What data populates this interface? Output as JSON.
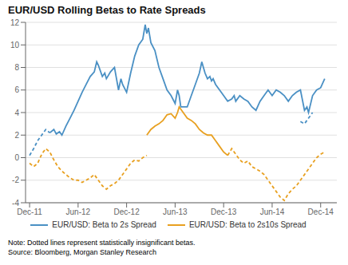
{
  "chart_data": {
    "type": "line",
    "title": "EUR/USD Rolling Betas to Rate Spreads",
    "annotations": [
      "Note: Dotted lines represent statistically insignificant betas.",
      "Source: Bloomberg, Morgan Stanley Research"
    ],
    "xlim": [
      -0.5,
      38
    ],
    "xticks": [
      {
        "value": 0,
        "label": "Dec-11"
      },
      {
        "value": 6,
        "label": "Jun-12"
      },
      {
        "value": 12,
        "label": "Dec-12"
      },
      {
        "value": 18,
        "label": "Jun-13"
      },
      {
        "value": 24,
        "label": "Dec-13"
      },
      {
        "value": 30,
        "label": "Jun-14"
      },
      {
        "value": 36,
        "label": "Dec-14"
      }
    ],
    "ylim": [
      -4,
      12
    ],
    "yticks": [
      -4,
      -2,
      0,
      2,
      4,
      6,
      8,
      10,
      12
    ],
    "grid": true,
    "legend": "bottom",
    "series": [
      {
        "name": "EUR/USD: Beta to 2s Spread",
        "color": "#4a90c4",
        "line_style": "solid",
        "x": [
          2.5,
          3.0,
          3.3,
          3.7,
          4.0,
          4.5,
          5.0,
          5.5,
          6.0,
          6.5,
          7.0,
          7.5,
          8.0,
          8.3,
          8.5,
          9.0,
          9.3,
          9.5,
          10.0,
          10.5,
          11.0,
          11.3,
          11.5,
          12.0,
          12.5,
          13.0,
          13.5,
          14.0,
          14.3,
          14.5,
          14.7,
          15.0,
          15.5,
          16.0,
          16.5,
          17.0,
          17.5,
          18.0,
          18.3,
          18.5,
          18.7,
          19.0,
          19.5,
          20.0,
          20.5,
          21.0,
          21.3,
          21.5,
          21.7,
          22.0,
          22.3,
          22.5,
          22.7,
          23.0,
          23.5,
          24.0,
          24.5,
          25.0,
          25.3,
          25.5,
          26.0,
          26.5,
          27.0,
          27.5,
          28.0,
          28.5,
          29.0,
          29.5,
          30.0,
          30.5,
          31.0,
          31.5,
          32.0,
          32.5,
          33.0,
          33.5,
          34.0,
          34.3,
          34.5,
          35.0,
          35.5,
          36.0,
          36.5
        ],
        "values": [
          2.2,
          2.5,
          2.1,
          2.3,
          2.0,
          2.8,
          3.5,
          4.2,
          5.0,
          5.8,
          6.5,
          7.2,
          7.6,
          8.5,
          8.2,
          7.2,
          7.5,
          7.0,
          7.6,
          8.0,
          6.0,
          7.0,
          6.5,
          5.8,
          7.5,
          9.0,
          10.0,
          10.5,
          11.8,
          11.0,
          11.5,
          10.2,
          9.5,
          8.0,
          7.0,
          6.0,
          5.5,
          4.8,
          6.0,
          5.5,
          4.5,
          4.5,
          4.5,
          5.5,
          6.5,
          7.5,
          8.5,
          8.0,
          7.5,
          7.0,
          7.2,
          6.8,
          7.0,
          6.5,
          6.0,
          5.5,
          5.0,
          5.2,
          5.5,
          5.0,
          5.5,
          5.2,
          5.0,
          4.5,
          4.2,
          5.0,
          5.5,
          6.0,
          5.5,
          6.0,
          5.8,
          5.5,
          5.0,
          5.5,
          5.8,
          6.0,
          4.2,
          4.5,
          4.0,
          5.5,
          6.0,
          6.2,
          7.0
        ]
      },
      {
        "name": "EUR/USD: Beta to 2s Spread",
        "color": "#4a90c4",
        "line_style": "dashed",
        "x": [
          0.0,
          0.5,
          1.0,
          1.5,
          2.0,
          2.5
        ],
        "values": [
          0.2,
          0.8,
          1.5,
          2.0,
          2.5,
          2.2
        ]
      },
      {
        "name": "EUR/USD: Beta to 2s Spread",
        "color": "#4a90c4",
        "line_style": "dashed",
        "x": [
          33.5,
          34.0,
          34.3,
          34.5,
          35.0
        ],
        "values": [
          3.2,
          3.0,
          3.3,
          3.5,
          4.0
        ]
      },
      {
        "name": "EUR/USD: Beta to 2s10s Spread",
        "color": "#e8a020",
        "line_style": "solid",
        "x": [
          14.5,
          15.0,
          15.5,
          16.0,
          16.5,
          17.0,
          17.5,
          18.0,
          18.3,
          18.5,
          18.7,
          19.0,
          19.5,
          20.0,
          20.5,
          21.0,
          21.5,
          22.0,
          22.5,
          23.0,
          23.5,
          24.0,
          24.5
        ],
        "values": [
          2.0,
          2.5,
          2.8,
          3.0,
          3.3,
          3.8,
          3.9,
          3.5,
          4.0,
          4.5,
          4.3,
          4.0,
          3.5,
          3.3,
          3.0,
          2.5,
          2.2,
          2.0,
          2.0,
          1.5,
          1.0,
          0.5,
          0.2
        ]
      },
      {
        "name": "EUR/USD: Beta to 2s10s Spread",
        "color": "#e8a020",
        "line_style": "dashed",
        "x": [
          0.0,
          0.5,
          1.0,
          1.5,
          2.0,
          2.5,
          3.0,
          3.5,
          4.0,
          4.5,
          5.0,
          5.5,
          6.0,
          6.5,
          7.0,
          7.5,
          8.0,
          8.5,
          9.0,
          9.5,
          10.0,
          10.5,
          11.0,
          11.5,
          12.0,
          12.5,
          13.0,
          13.5,
          14.0,
          14.5
        ],
        "values": [
          -0.5,
          -0.8,
          -0.5,
          0.3,
          0.8,
          0.5,
          -0.2,
          -0.8,
          -1.2,
          -1.5,
          -1.8,
          -2.0,
          -2.0,
          -2.2,
          -2.0,
          -1.8,
          -1.5,
          -2.0,
          -2.5,
          -2.8,
          -2.5,
          -2.3,
          -2.0,
          -1.5,
          -1.0,
          -0.5,
          -0.2,
          -0.3,
          0.0,
          0.2
        ]
      },
      {
        "name": "EUR/USD: Beta to 2s10s Spread",
        "color": "#e8a020",
        "line_style": "dashed",
        "x": [
          24.5,
          25.0,
          25.5,
          26.0,
          26.5,
          27.0,
          27.5,
          28.0,
          28.5,
          29.0,
          29.5,
          30.0,
          30.5,
          31.0,
          31.5,
          32.0,
          32.5,
          33.0,
          33.5,
          34.0,
          34.5,
          35.0,
          35.5,
          36.0,
          36.5
        ],
        "values": [
          0.2,
          0.8,
          0.3,
          -0.2,
          -0.5,
          -0.3,
          -0.8,
          -1.0,
          -1.2,
          -1.5,
          -2.0,
          -2.5,
          -3.0,
          -3.5,
          -3.8,
          -3.2,
          -2.8,
          -2.5,
          -2.0,
          -1.5,
          -1.0,
          -0.5,
          0.0,
          0.3,
          0.5
        ]
      }
    ]
  }
}
